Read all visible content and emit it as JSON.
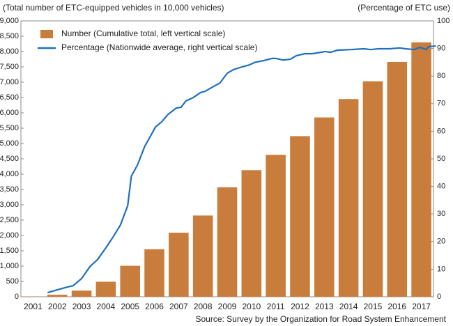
{
  "chart_data": {
    "type": "bar",
    "left_axis_label": "(Total number of ETC-equipped vehicles in 10,000 vehicles)",
    "right_axis_label": "(Percentage of ETC use)",
    "source": "Source: Survey by the Organization for Road System Enhancement",
    "categories": [
      "2001",
      "2002",
      "2003",
      "2004",
      "2005",
      "2006",
      "2007",
      "2008",
      "2009",
      "2010",
      "2011",
      "2012",
      "2013",
      "2014",
      "2015",
      "2016",
      "2017"
    ],
    "series": [
      {
        "name": "Number (Cumulative total, left vertical scale)",
        "type": "bar",
        "color": "#c97d3d",
        "values": [
          5,
          65,
          200,
          490,
          1010,
          1550,
          2090,
          2650,
          3570,
          4130,
          4630,
          5240,
          5850,
          6450,
          7030,
          7660,
          8300
        ]
      },
      {
        "name": "Percentage (Nationwide average, right vertical scale)",
        "type": "line",
        "axis": "y2",
        "color": "#1f6fbf",
        "x": [
          2001.6,
          2002.0,
          2002.4,
          2002.65,
          2003.0,
          2003.35,
          2003.65,
          2004.0,
          2004.3,
          2004.6,
          2004.9,
          2005.05,
          2005.3,
          2005.6,
          2005.8,
          2006.05,
          2006.3,
          2006.55,
          2006.9,
          2007.1,
          2007.3,
          2007.6,
          2007.9,
          2008.1,
          2008.35,
          2008.7,
          2009.0,
          2009.25,
          2009.6,
          2009.9,
          2010.15,
          2010.5,
          2010.85,
          2011.0,
          2011.3,
          2011.6,
          2011.85,
          2012.2,
          2012.5,
          2012.85,
          2013.05,
          2013.25,
          2013.55,
          2014.1,
          2014.65,
          2014.9,
          2015.25,
          2015.7,
          2016.1,
          2016.35,
          2016.7,
          2016.95,
          2017.2,
          2017.3,
          2017.6
        ],
        "values": [
          1.5,
          2.5,
          3.5,
          4,
          6.6,
          11,
          13.4,
          17.7,
          21.7,
          26,
          33,
          43.7,
          47.7,
          54.5,
          57.6,
          61.6,
          63.4,
          66,
          68.4,
          68.7,
          71,
          72.2,
          74,
          74.5,
          75.8,
          77.5,
          81,
          82.3,
          83.3,
          84,
          85,
          85.6,
          86.4,
          86.4,
          85.8,
          86.1,
          87.4,
          88.1,
          88.1,
          88.6,
          88.9,
          88.6,
          89.4,
          89.6,
          89.9,
          89.6,
          89.9,
          89.9,
          90.2,
          89.9,
          89.6,
          90.4,
          89.6,
          90.7,
          90.9
        ]
      }
    ],
    "ylim": [
      0,
      9000
    ],
    "yticks": [
      0,
      500,
      {
        "value": 1000,
        "label": "1,000"
      },
      {
        "value": 1500,
        "label": "1,500"
      },
      {
        "value": 2000,
        "label": "2,000"
      },
      {
        "value": 2500,
        "label": "2,500"
      },
      {
        "value": 3000,
        "label": "3,000"
      },
      {
        "value": 3500,
        "label": "3,500"
      },
      {
        "value": 4000,
        "label": "4,000"
      },
      {
        "value": 4500,
        "label": "4,500"
      },
      {
        "value": 5000,
        "label": "5,000"
      },
      {
        "value": 5500,
        "label": "5,500"
      },
      {
        "value": 6000,
        "label": "6,000"
      },
      {
        "value": 6500,
        "label": "6,500"
      },
      {
        "value": 7000,
        "label": "7,000"
      },
      {
        "value": 7500,
        "label": "7,500"
      },
      {
        "value": 8000,
        "label": "8,000"
      },
      {
        "value": 8500,
        "label": "8,500"
      },
      {
        "value": 9000,
        "label": "9,000"
      }
    ],
    "y2lim": [
      0,
      100
    ],
    "y2ticks": [
      0,
      10,
      20,
      30,
      40,
      50,
      60,
      70,
      80,
      90,
      100
    ],
    "grid": false,
    "legend": "top-left"
  }
}
